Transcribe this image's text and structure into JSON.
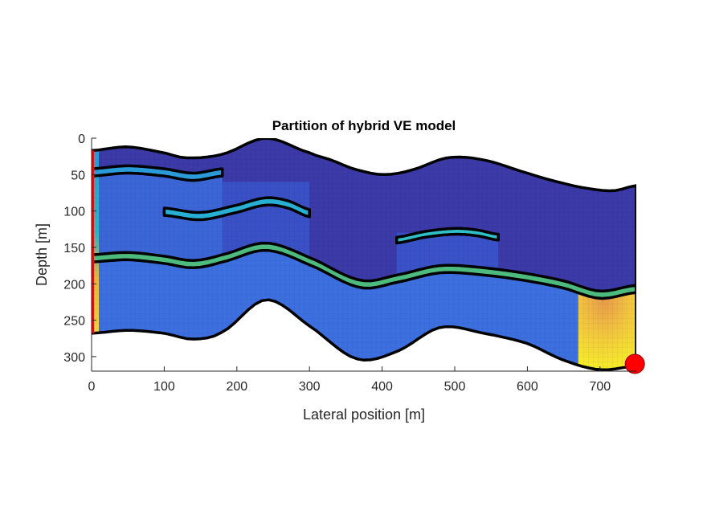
{
  "chart_data": {
    "type": "heatmap",
    "title": "Partition of hybrid VE model",
    "xlabel": "Lateral position [m]",
    "ylabel": "Depth [m]",
    "xlim": [
      0,
      750
    ],
    "ylim": [
      0,
      320
    ],
    "y_reversed": true,
    "xticks": [
      0,
      100,
      200,
      300,
      400,
      500,
      600,
      700
    ],
    "yticks": [
      0,
      50,
      100,
      150,
      200,
      250,
      300
    ],
    "grid": false,
    "domain": {
      "top_surface": [
        [
          0,
          17
        ],
        [
          50,
          12
        ],
        [
          100,
          20
        ],
        [
          130,
          27
        ],
        [
          180,
          22
        ],
        [
          240,
          0
        ],
        [
          300,
          20
        ],
        [
          330,
          30
        ],
        [
          360,
          42
        ],
        [
          400,
          50
        ],
        [
          440,
          44
        ],
        [
          490,
          27
        ],
        [
          540,
          30
        ],
        [
          600,
          48
        ],
        [
          650,
          62
        ],
        [
          690,
          70
        ],
        [
          720,
          72
        ],
        [
          750,
          65
        ]
      ],
      "bottom_surface": [
        [
          0,
          268
        ],
        [
          50,
          264
        ],
        [
          100,
          268
        ],
        [
          140,
          276
        ],
        [
          180,
          266
        ],
        [
          240,
          222
        ],
        [
          300,
          258
        ],
        [
          365,
          303
        ],
        [
          420,
          293
        ],
        [
          480,
          260
        ],
        [
          540,
          268
        ],
        [
          600,
          282
        ],
        [
          650,
          305
        ],
        [
          700,
          318
        ],
        [
          750,
          313
        ]
      ]
    },
    "fine_scale_regions": [
      {
        "name": "left column",
        "x_range": [
          0,
          10
        ],
        "color": "#2bb7c3"
      },
      {
        "name": "lower-right block",
        "x_range": [
          670,
          750
        ],
        "color": "#f0c040"
      }
    ],
    "sealing_layers": [
      {
        "name": "upper thin layer",
        "x_range": [
          0,
          180
        ],
        "depth_curve": [
          [
            0,
            42
          ],
          [
            50,
            38
          ],
          [
            100,
            42
          ],
          [
            140,
            48
          ],
          [
            180,
            42
          ]
        ],
        "thickness": 10,
        "color": "#2a9ad8"
      },
      {
        "name": "middle lens",
        "x_range": [
          100,
          300
        ],
        "depth_curve": [
          [
            100,
            96
          ],
          [
            150,
            102
          ],
          [
            200,
            92
          ],
          [
            240,
            82
          ],
          [
            270,
            86
          ],
          [
            300,
            98
          ]
        ],
        "thickness": 10,
        "color": "#27b0d4"
      },
      {
        "name": "right lens",
        "x_range": [
          420,
          560
        ],
        "depth_curve": [
          [
            420,
            136
          ],
          [
            460,
            128
          ],
          [
            500,
            124
          ],
          [
            530,
            126
          ],
          [
            560,
            132
          ]
        ],
        "thickness": 8,
        "color": "#2ec0c6"
      },
      {
        "name": "lower continuous layer",
        "x_range": [
          0,
          750
        ],
        "depth_curve": [
          [
            0,
            160
          ],
          [
            50,
            157
          ],
          [
            100,
            162
          ],
          [
            140,
            168
          ],
          [
            180,
            160
          ],
          [
            240,
            144
          ],
          [
            300,
            164
          ],
          [
            370,
            195
          ],
          [
            420,
            188
          ],
          [
            480,
            175
          ],
          [
            540,
            178
          ],
          [
            600,
            186
          ],
          [
            650,
            196
          ],
          [
            700,
            210
          ],
          [
            750,
            202
          ]
        ],
        "thickness": 10,
        "color": "#4dbb7e"
      }
    ],
    "wells": [
      {
        "name": "boundary",
        "x": 0,
        "depth_range": [
          17,
          268
        ],
        "color": "#ff0000"
      },
      {
        "name": "injector",
        "x": 748,
        "depth": 310,
        "color": "#ff0000"
      }
    ],
    "colors": {
      "upper_zone": "#3b3aa8",
      "lower_zone": "#3c6fe0",
      "mid_zone": "#3b55cc",
      "sealing_outline": "#000000"
    }
  }
}
